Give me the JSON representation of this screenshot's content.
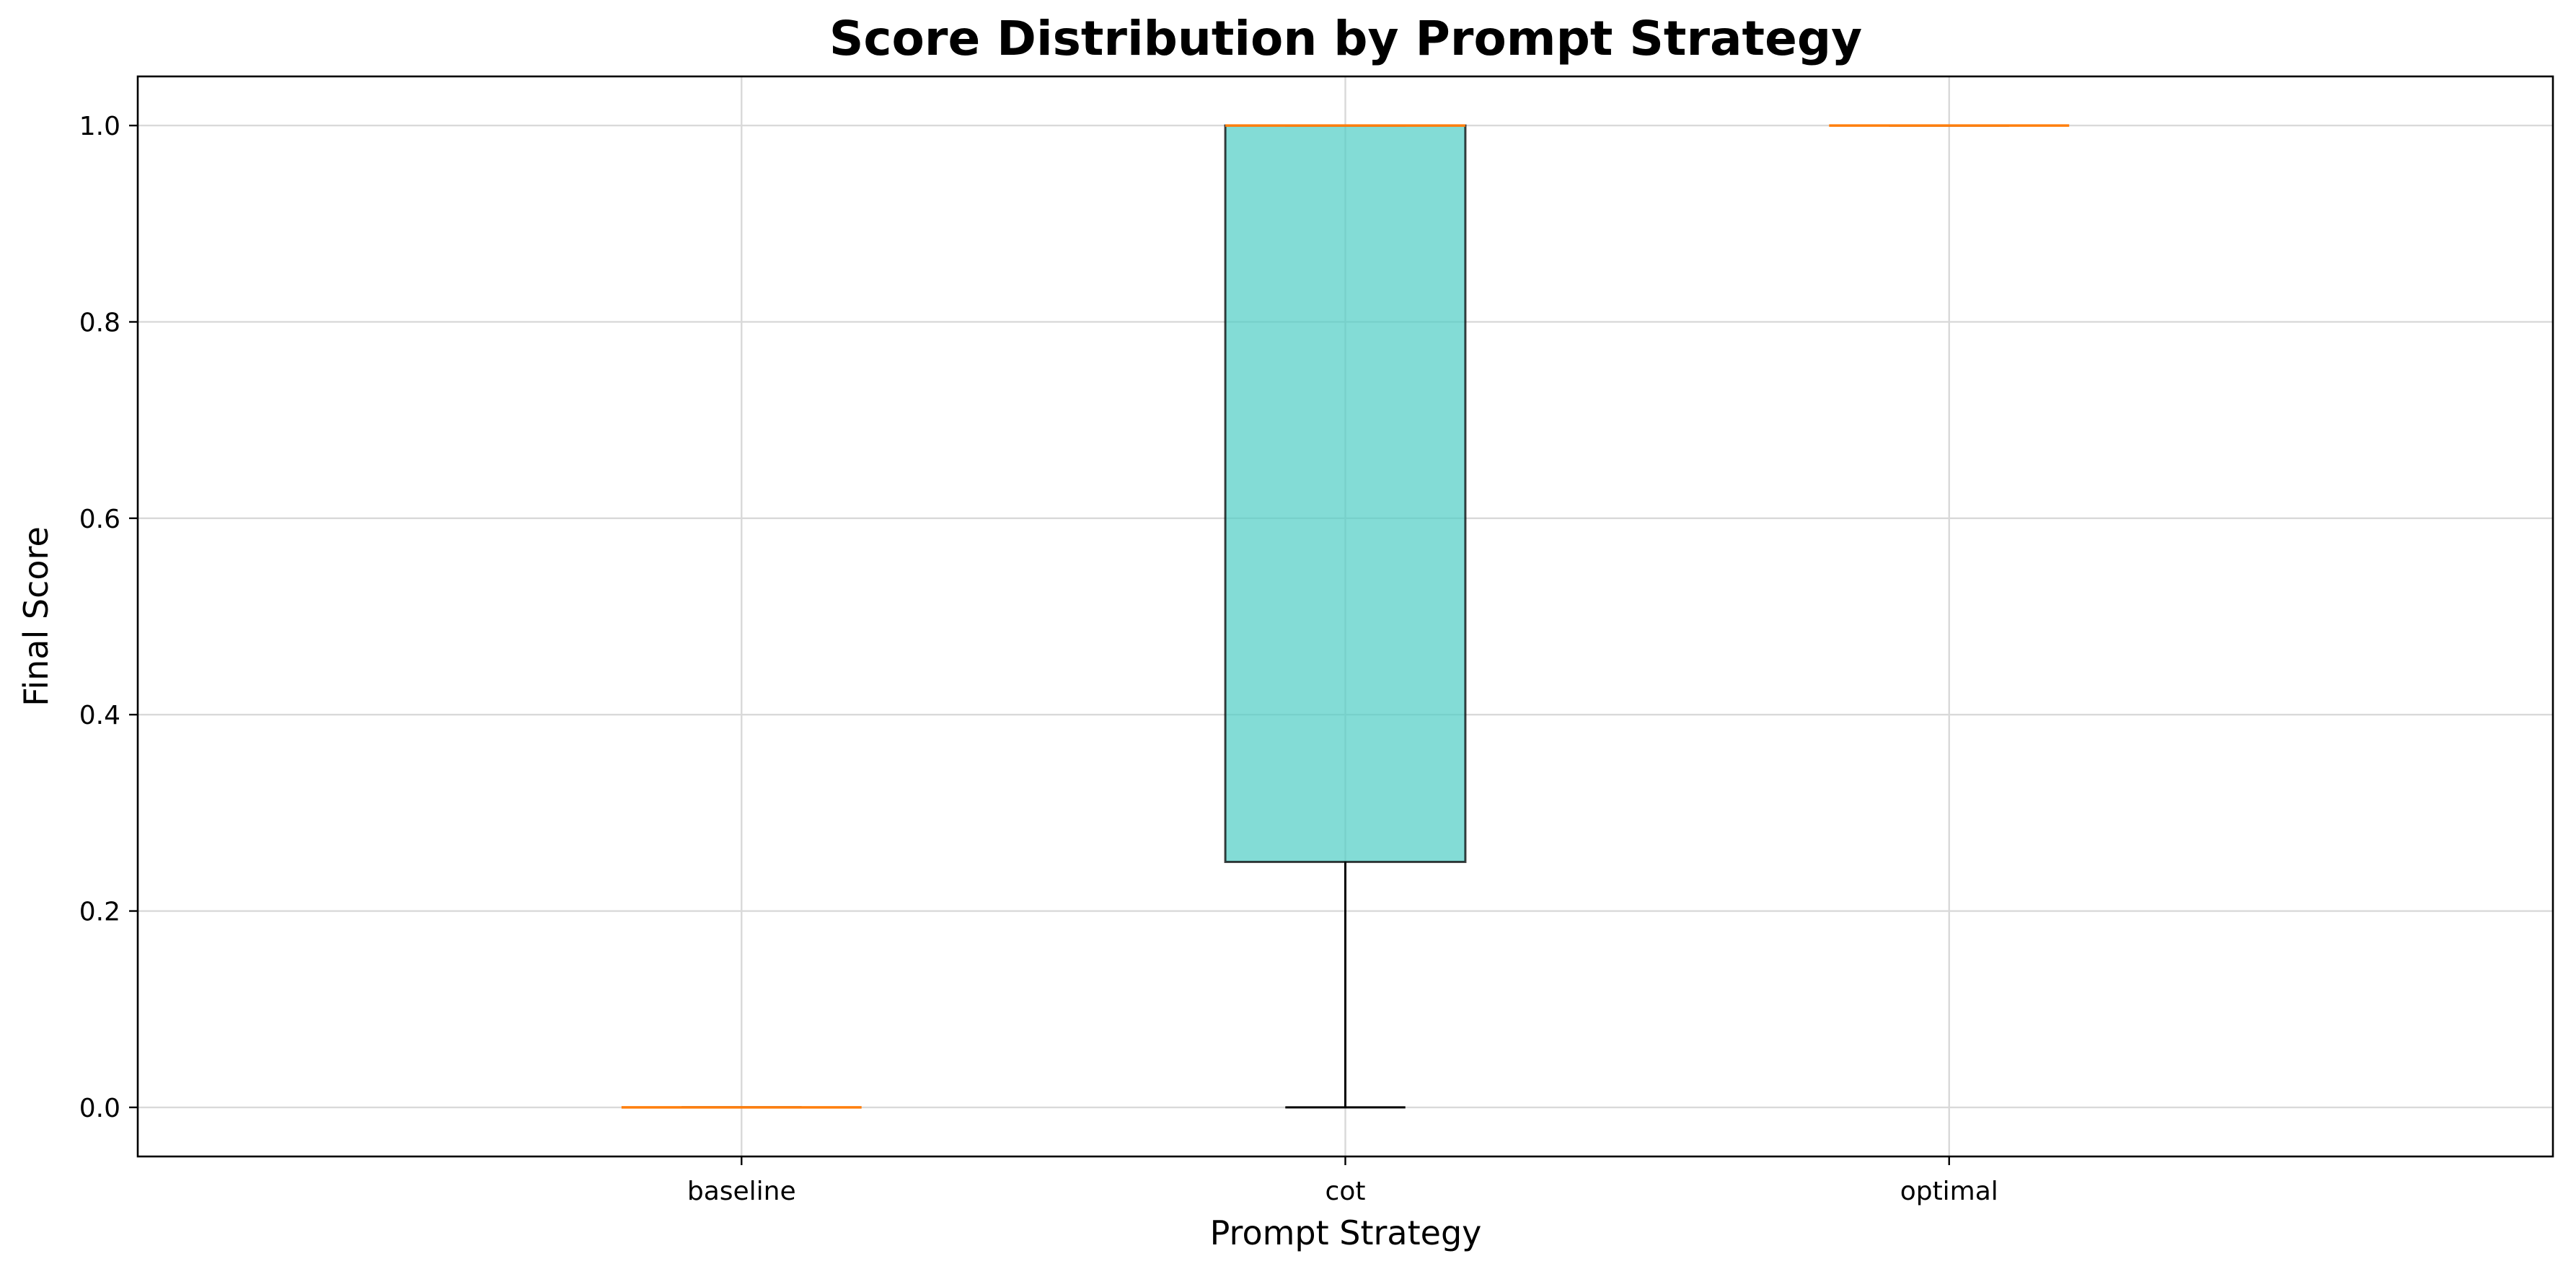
{
  "chart_data": {
    "type": "box",
    "title": "Score Distribution by Prompt Strategy",
    "xlabel": "Prompt Strategy",
    "ylabel": "Final Score",
    "categories": [
      "baseline",
      "cot",
      "optimal"
    ],
    "boxes": [
      {
        "category": "baseline",
        "min": 0.0,
        "q1": 0.0,
        "median": 0.0,
        "q3": 0.0,
        "max": 0.0
      },
      {
        "category": "cot",
        "min": 0.0,
        "q1": 0.25,
        "median": 1.0,
        "q3": 1.0,
        "max": 1.0
      },
      {
        "category": "optimal",
        "min": 1.0,
        "q1": 1.0,
        "median": 1.0,
        "q3": 1.0,
        "max": 1.0
      }
    ],
    "ylim": [
      -0.05,
      1.05
    ],
    "yticks": [
      0.0,
      0.2,
      0.4,
      0.6,
      0.8,
      1.0
    ],
    "ytick_labels": [
      "0.0",
      "0.2",
      "0.4",
      "0.6",
      "0.8",
      "1.0"
    ],
    "grid": true,
    "colors": {
      "box_fill": "#4ecdc4",
      "median": "#ff7f0e",
      "edge": "#000000",
      "grid": "#d9d9d9"
    }
  }
}
